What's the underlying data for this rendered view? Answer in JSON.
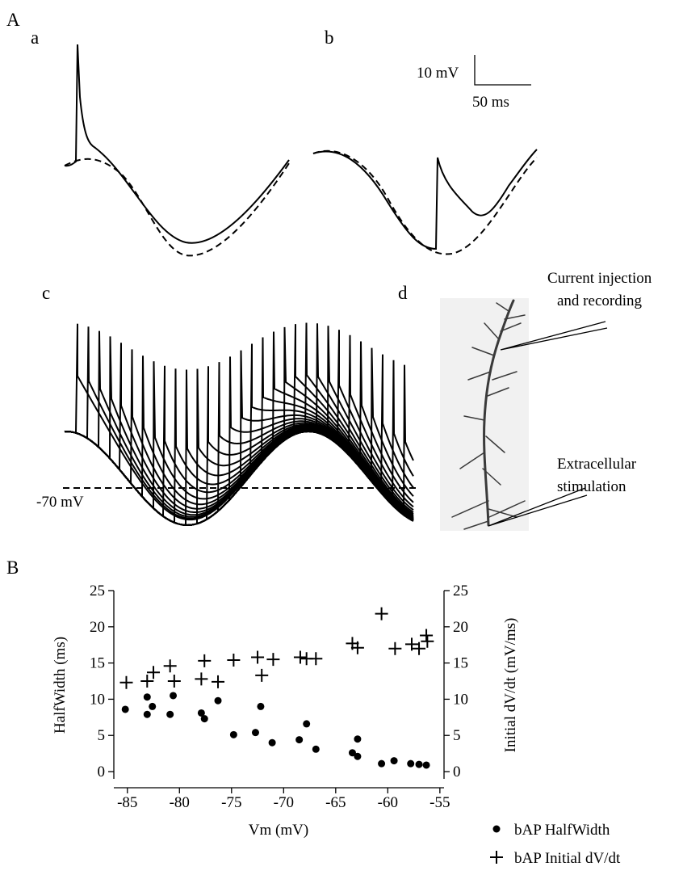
{
  "figure": {
    "panel_A": "A",
    "panel_a": "a",
    "panel_b": "b",
    "panel_c": "c",
    "panel_d": "d",
    "panel_B": "B",
    "scale_voltage": "10 mV",
    "scale_time": "50 ms",
    "reference_level": "-70 mV",
    "injection_label": [
      "Current injection",
      "and recording"
    ],
    "stimulation_label": [
      "Extracellular",
      "stimulation"
    ]
  },
  "chart_data": {
    "type": "scatter",
    "xlabel": "Vm (mV)",
    "ylabel": "HalfWidth (ms)",
    "y2label": "Initial dV/dt (mV/ms)",
    "xlim": [
      -86.3,
      -54.6
    ],
    "xticks": [
      -85,
      -80,
      -75,
      -70,
      -65,
      -60,
      -55
    ],
    "ylim": [
      -1,
      25
    ],
    "yticks": [
      0,
      5,
      10,
      15,
      20,
      25
    ],
    "y2lim": [
      -1,
      25
    ],
    "y2ticks": [
      0,
      5,
      10,
      15,
      20,
      25
    ],
    "legend": "bottom-right",
    "series": [
      {
        "name": "bAP HalfWidth",
        "color": "#000000",
        "marker": "circle",
        "x": [
          -85.2,
          -83.1,
          -83.1,
          -82.6,
          -80.9,
          -80.6,
          -77.9,
          -77.6,
          -76.3,
          -74.8,
          -72.7,
          -72.2,
          -71.1,
          -68.5,
          -67.8,
          -66.9,
          -63.4,
          -62.9,
          -62.9,
          -60.6,
          -59.4,
          -57.8,
          -57.0,
          -56.3
        ],
        "values": [
          8.6,
          10.3,
          7.9,
          9.0,
          7.9,
          10.5,
          8.1,
          7.3,
          9.8,
          5.1,
          5.4,
          9.0,
          4.0,
          4.4,
          6.6,
          3.1,
          2.6,
          4.5,
          2.1,
          1.1,
          1.5,
          1.1,
          1.0,
          0.9
        ]
      },
      {
        "name": "bAP Initial dV/dt",
        "color": "#000000",
        "marker": "plus",
        "axis": "y2",
        "x": [
          -85.1,
          -83.1,
          -82.5,
          -80.9,
          -80.5,
          -77.9,
          -77.6,
          -76.3,
          -74.8,
          -72.5,
          -72.1,
          -71.0,
          -68.4,
          -67.8,
          -66.9,
          -63.4,
          -62.9,
          -60.6,
          -59.3,
          -57.7,
          -57.0,
          -56.3,
          -56.2
        ],
        "values": [
          12.3,
          12.5,
          13.7,
          14.6,
          12.5,
          12.8,
          15.3,
          12.4,
          15.4,
          15.8,
          13.3,
          15.5,
          15.8,
          15.6,
          15.6,
          17.7,
          17.1,
          21.8,
          17.0,
          17.6,
          17.0,
          18.8,
          18.0
        ]
      }
    ]
  }
}
